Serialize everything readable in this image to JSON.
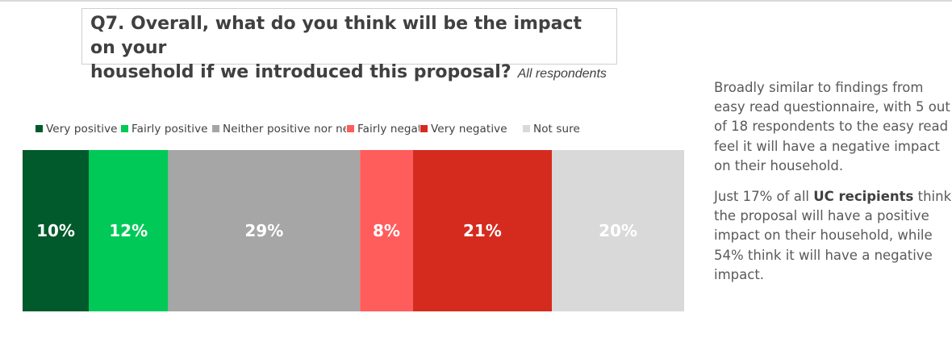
{
  "question": {
    "title_line1": "Q7. Overall, what do you think will be the impact on your",
    "title_line2": "household if we introduced this proposal?",
    "subtitle": "All respondents"
  },
  "chart_data": {
    "type": "bar",
    "orientation": "horizontal-stacked",
    "legend_position": "top",
    "categories": [
      "All respondents"
    ],
    "series": [
      {
        "name": "Very positive",
        "values": [
          10
        ],
        "label": "10%",
        "color": "#005a2b",
        "label_color": "#ffffff"
      },
      {
        "name": "Fairly positive",
        "values": [
          12
        ],
        "label": "12%",
        "color": "#00c957",
        "label_color": "#ffffff"
      },
      {
        "name": "Neither positive nor negative",
        "values": [
          29
        ],
        "label": "29%",
        "color": "#a6a6a6",
        "label_color": "#ffffff"
      },
      {
        "name": "Fairly negative",
        "values": [
          8
        ],
        "label": "8%",
        "color": "#ff5c5c",
        "label_color": "#ffffff"
      },
      {
        "name": "Very negative",
        "values": [
          21
        ],
        "label": "21%",
        "color": "#d52b1e",
        "label_color": "#ffffff"
      },
      {
        "name": "Not sure",
        "values": [
          20
        ],
        "label": "20%",
        "color": "#d9d9d9",
        "label_color": "#ffffff"
      }
    ],
    "unit": "%"
  },
  "commentary": {
    "p1": "Broadly similar to findings from easy read questionnaire, with 5 out of 18 respondents to the easy read feel it will have a negative impact on their household.",
    "p2_before": "Just 17% of all ",
    "p2_bold": "UC recipients",
    "p2_after": " think the proposal will have a positive impact on their household, while 54% think it will have a negative impact."
  }
}
